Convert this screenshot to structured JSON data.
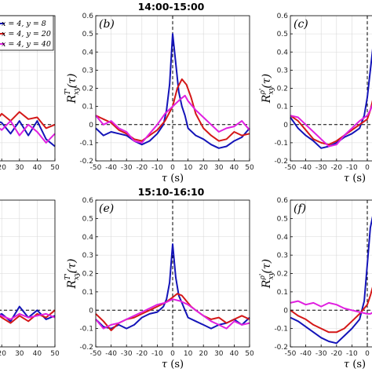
{
  "titles": {
    "top": "14:00-15:00",
    "bottom": "15:10-16:10"
  },
  "legend": [
    "x = 4, y = 8",
    "x = 4, y = 20",
    "x = 4, y = 40"
  ],
  "colors": {
    "y8": "#1414b8",
    "y20": "#d41818",
    "y40": "#e020e0",
    "zero": "#000000",
    "grid": "#d8d8d8"
  },
  "chart_data": [
    {
      "type": "line",
      "label": "",
      "title": "",
      "xlim": [
        -50,
        50
      ],
      "ylim": [
        -0.2,
        0.6
      ],
      "xticks": [
        -50,
        -40,
        -30,
        -20,
        -10,
        0,
        10,
        20,
        30,
        40,
        50
      ],
      "xtick_labels_visible": [
        "20",
        "30",
        "40",
        "50"
      ],
      "series": [
        {
          "name": "x = 4, y = 8",
          "color": "#1414b8",
          "x": [
            -50,
            -45,
            -40,
            -35,
            -30,
            -25,
            -20,
            -15,
            -10,
            -5,
            0,
            5,
            10,
            15,
            20,
            25,
            30,
            35,
            40,
            45,
            50
          ],
          "y": [
            0.03,
            0.0,
            0.05,
            0.02,
            -0.02,
            0.04,
            0.0,
            0.02,
            -0.03,
            0.03,
            0.05,
            0.02,
            -0.02,
            0.03,
            0.01,
            -0.05,
            0.02,
            -0.06,
            0.02,
            -0.08,
            -0.12
          ]
        },
        {
          "name": "x = 4, y = 20",
          "color": "#d41818",
          "x": [
            -50,
            -45,
            -40,
            -35,
            -30,
            -25,
            -20,
            -15,
            -10,
            -5,
            0,
            5,
            10,
            15,
            20,
            25,
            30,
            35,
            40,
            45,
            50
          ],
          "y": [
            0.02,
            0.05,
            0.0,
            0.04,
            0.01,
            -0.02,
            0.03,
            0.0,
            0.05,
            0.01,
            0.02,
            -0.01,
            0.04,
            0.0,
            0.06,
            0.02,
            0.07,
            0.03,
            0.04,
            -0.02,
            0.0
          ]
        },
        {
          "name": "x = 4, y = 40",
          "color": "#e020e0",
          "x": [
            -50,
            -45,
            -40,
            -35,
            -30,
            -25,
            -20,
            -15,
            -10,
            -5,
            0,
            5,
            10,
            15,
            20,
            25,
            30,
            35,
            40,
            45,
            50
          ],
          "y": [
            -0.02,
            0.02,
            -0.01,
            0.03,
            0.0,
            0.02,
            -0.03,
            0.01,
            0.03,
            -0.02,
            0.0,
            0.04,
            -0.02,
            0.01,
            -0.03,
            0.02,
            -0.06,
            0.0,
            -0.04,
            -0.1,
            -0.05
          ]
        }
      ]
    },
    {
      "type": "line",
      "label": "(b)",
      "title": "14:00-15:00",
      "ylabel": "R_xy^T'(τ)",
      "xlabel": "τ (s)",
      "xlim": [
        -50,
        50
      ],
      "ylim": [
        -0.2,
        0.6
      ],
      "xticks": [
        -50,
        -40,
        -30,
        -20,
        -10,
        0,
        10,
        20,
        30,
        40,
        50
      ],
      "yticks": [
        -0.2,
        -0.1,
        0,
        0.1,
        0.2,
        0.3,
        0.4,
        0.5,
        0.6
      ],
      "series": [
        {
          "name": "x = 4, y = 8",
          "color": "#1414b8",
          "x": [
            -50,
            -45,
            -40,
            -35,
            -30,
            -25,
            -20,
            -15,
            -10,
            -6,
            -4,
            -2,
            0,
            2,
            4,
            6,
            8,
            10,
            15,
            20,
            25,
            30,
            35,
            40,
            45,
            50
          ],
          "y": [
            -0.02,
            -0.06,
            -0.04,
            -0.05,
            -0.06,
            -0.09,
            -0.11,
            -0.09,
            -0.05,
            0.0,
            0.08,
            0.22,
            0.5,
            0.34,
            0.18,
            0.1,
            0.05,
            -0.02,
            -0.06,
            -0.08,
            -0.11,
            -0.13,
            -0.12,
            -0.09,
            -0.07,
            -0.02
          ]
        },
        {
          "name": "x = 4, y = 20",
          "color": "#d41818",
          "x": [
            -50,
            -45,
            -40,
            -35,
            -30,
            -25,
            -20,
            -15,
            -10,
            -5,
            0,
            3,
            6,
            9,
            12,
            15,
            20,
            25,
            30,
            35,
            40,
            45,
            50
          ],
          "y": [
            0.05,
            0.03,
            0.01,
            -0.03,
            -0.05,
            -0.08,
            -0.09,
            -0.06,
            -0.03,
            0.02,
            0.1,
            0.2,
            0.25,
            0.22,
            0.15,
            0.06,
            -0.02,
            -0.06,
            -0.09,
            -0.08,
            -0.04,
            -0.06,
            -0.05
          ]
        },
        {
          "name": "x = 4, y = 40",
          "color": "#e020e0",
          "x": [
            -50,
            -45,
            -40,
            -35,
            -30,
            -25,
            -20,
            -15,
            -10,
            -5,
            0,
            5,
            8,
            10,
            15,
            20,
            25,
            30,
            35,
            40,
            45,
            50
          ],
          "y": [
            0.05,
            0.0,
            0.02,
            -0.02,
            -0.04,
            -0.09,
            -0.1,
            -0.05,
            0.0,
            0.06,
            0.1,
            0.14,
            0.16,
            0.13,
            0.08,
            0.04,
            0.0,
            -0.04,
            -0.02,
            -0.01,
            0.02,
            -0.03
          ]
        }
      ]
    },
    {
      "type": "line",
      "label": "(c)",
      "title": "",
      "ylabel": "R_xy^ρ'(τ)",
      "xlabel": "τ (s)",
      "xlim": [
        -50,
        50
      ],
      "ylim": [
        -0.2,
        0.6
      ],
      "xticks": [
        -50,
        -40,
        -30,
        -20,
        -10,
        0
      ],
      "series": [
        {
          "name": "x = 4, y = 8",
          "color": "#1414b8",
          "x": [
            -50,
            -45,
            -40,
            -35,
            -30,
            -25,
            -20,
            -15,
            -10,
            -5,
            -2,
            0,
            2,
            4,
            6
          ],
          "y": [
            0.04,
            -0.02,
            -0.06,
            -0.09,
            -0.13,
            -0.12,
            -0.1,
            -0.07,
            -0.05,
            -0.02,
            0.05,
            0.15,
            0.3,
            0.45,
            0.55
          ]
        },
        {
          "name": "x = 4, y = 20",
          "color": "#d41818",
          "x": [
            -50,
            -45,
            -40,
            -35,
            -30,
            -25,
            -20,
            -15,
            -10,
            -5,
            0,
            2,
            4,
            6
          ],
          "y": [
            0.05,
            0.02,
            -0.03,
            -0.08,
            -0.1,
            -0.11,
            -0.09,
            -0.06,
            -0.03,
            0.0,
            0.03,
            0.08,
            0.15,
            0.22
          ]
        },
        {
          "name": "x = 4, y = 40",
          "color": "#e020e0",
          "x": [
            -50,
            -45,
            -40,
            -35,
            -30,
            -25,
            -20,
            -15,
            -10,
            -5,
            0,
            2,
            4,
            6
          ],
          "y": [
            0.05,
            0.04,
            0.0,
            -0.04,
            -0.08,
            -0.12,
            -0.11,
            -0.06,
            -0.02,
            0.02,
            0.05,
            0.08,
            0.12,
            0.14
          ]
        }
      ]
    },
    {
      "type": "line",
      "label": "",
      "title": "",
      "xlim": [
        -50,
        50
      ],
      "ylim": [
        -0.2,
        0.6
      ],
      "xtick_labels_visible": [
        "20",
        "30",
        "40",
        "50"
      ],
      "series": [
        {
          "name": "x = 4, y = 8",
          "color": "#1414b8",
          "x": [
            -50,
            -45,
            -40,
            -35,
            -30,
            -25,
            -20,
            -15,
            -10,
            -5,
            0,
            5,
            10,
            15,
            20,
            25,
            30,
            35,
            40,
            45,
            50
          ],
          "y": [
            -0.05,
            0.0,
            -0.08,
            -0.02,
            -0.06,
            0.01,
            -0.04,
            -0.08,
            -0.02,
            0.0,
            -0.05,
            -0.02,
            0.01,
            -0.04,
            -0.02,
            -0.06,
            0.02,
            -0.04,
            0.0,
            -0.05,
            -0.03
          ]
        },
        {
          "name": "x = 4, y = 20",
          "color": "#d41818",
          "x": [
            -50,
            -45,
            -40,
            -35,
            -30,
            -25,
            -20,
            -15,
            -10,
            -5,
            0,
            5,
            10,
            15,
            20,
            25,
            30,
            35,
            40,
            45,
            50
          ],
          "y": [
            -0.02,
            -0.06,
            -0.01,
            -0.05,
            -0.03,
            -0.07,
            -0.02,
            -0.04,
            -0.06,
            -0.01,
            0.03,
            -0.02,
            -0.05,
            0.0,
            -0.04,
            -0.07,
            -0.03,
            -0.06,
            -0.02,
            -0.04,
            0.0
          ]
        },
        {
          "name": "x = 4, y = 40",
          "color": "#e020e0",
          "x": [
            -50,
            -45,
            -40,
            -35,
            -30,
            -25,
            -20,
            -15,
            -10,
            -5,
            0,
            5,
            10,
            15,
            20,
            25,
            30,
            35,
            40,
            45,
            50
          ],
          "y": [
            -0.03,
            0.0,
            -0.04,
            -0.02,
            -0.05,
            -0.03,
            0.0,
            -0.06,
            -0.03,
            -0.05,
            -0.02,
            -0.04,
            -0.06,
            -0.01,
            -0.03,
            -0.05,
            -0.02,
            -0.04,
            -0.03,
            -0.02,
            -0.04
          ]
        }
      ]
    },
    {
      "type": "line",
      "label": "(e)",
      "title": "15:10-16:10",
      "ylabel": "R_xy^T'(τ)",
      "xlabel": "τ (s)",
      "xlim": [
        -50,
        50
      ],
      "ylim": [
        -0.2,
        0.6
      ],
      "xticks": [
        -50,
        -40,
        -30,
        -20,
        -10,
        0,
        10,
        20,
        30,
        40,
        50
      ],
      "yticks": [
        -0.2,
        -0.1,
        0,
        0.1,
        0.2,
        0.3,
        0.4,
        0.5,
        0.6
      ],
      "series": [
        {
          "name": "x = 4, y = 8",
          "color": "#1414b8",
          "x": [
            -50,
            -45,
            -40,
            -35,
            -30,
            -25,
            -20,
            -15,
            -10,
            -6,
            -4,
            -2,
            0,
            2,
            4,
            6,
            8,
            10,
            15,
            20,
            25,
            30,
            35,
            40,
            45,
            50
          ],
          "y": [
            -0.05,
            -0.09,
            -0.1,
            -0.08,
            -0.1,
            -0.08,
            -0.04,
            -0.02,
            -0.01,
            0.02,
            0.06,
            0.15,
            0.36,
            0.18,
            0.08,
            0.04,
            0.0,
            -0.04,
            -0.06,
            -0.08,
            -0.1,
            -0.08,
            -0.07,
            -0.05,
            -0.08,
            -0.04
          ]
        },
        {
          "name": "x = 4, y = 20",
          "color": "#d41818",
          "x": [
            -50,
            -45,
            -40,
            -35,
            -30,
            -25,
            -20,
            -15,
            -10,
            -5,
            0,
            3,
            6,
            9,
            12,
            15,
            20,
            25,
            30,
            35,
            40,
            45,
            50
          ],
          "y": [
            -0.02,
            -0.06,
            -0.11,
            -0.07,
            -0.05,
            -0.04,
            -0.02,
            0.0,
            0.02,
            0.04,
            0.07,
            0.09,
            0.08,
            0.05,
            0.02,
            0.0,
            -0.03,
            -0.05,
            -0.04,
            -0.07,
            -0.05,
            -0.03,
            -0.05
          ]
        },
        {
          "name": "x = 4, y = 40",
          "color": "#e020e0",
          "x": [
            -50,
            -45,
            -40,
            -35,
            -30,
            -25,
            -20,
            -15,
            -10,
            -5,
            0,
            5,
            10,
            15,
            20,
            25,
            30,
            35,
            40,
            45,
            50
          ],
          "y": [
            -0.05,
            -0.1,
            -0.08,
            -0.07,
            -0.05,
            -0.03,
            -0.01,
            0.01,
            0.03,
            0.04,
            0.06,
            0.05,
            0.03,
            0.0,
            -0.03,
            -0.06,
            -0.08,
            -0.1,
            -0.06,
            -0.08,
            -0.07
          ]
        }
      ]
    },
    {
      "type": "line",
      "label": "(f)",
      "title": "",
      "ylabel": "R_xy^ρ'(τ)",
      "xlabel": "τ (s)",
      "xlim": [
        -50,
        50
      ],
      "ylim": [
        -0.2,
        0.6
      ],
      "xticks": [
        -50,
        -40,
        -30,
        -20,
        -10,
        0
      ],
      "series": [
        {
          "name": "x = 4, y = 8",
          "color": "#1414b8",
          "x": [
            -50,
            -45,
            -40,
            -35,
            -30,
            -25,
            -20,
            -15,
            -10,
            -5,
            -2,
            0,
            2,
            4,
            6
          ],
          "y": [
            -0.04,
            -0.06,
            -0.09,
            -0.12,
            -0.15,
            -0.17,
            -0.18,
            -0.14,
            -0.1,
            -0.05,
            0.05,
            0.25,
            0.45,
            0.53,
            0.5
          ]
        },
        {
          "name": "x = 4, y = 20",
          "color": "#d41818",
          "x": [
            -50,
            -45,
            -40,
            -35,
            -30,
            -25,
            -20,
            -15,
            -10,
            -5,
            0,
            2,
            4,
            6
          ],
          "y": [
            0.0,
            -0.03,
            -0.05,
            -0.08,
            -0.1,
            -0.12,
            -0.12,
            -0.1,
            -0.06,
            -0.02,
            0.03,
            0.08,
            0.14,
            0.2
          ]
        },
        {
          "name": "x = 4, y = 40",
          "color": "#e020e0",
          "x": [
            -50,
            -45,
            -40,
            -35,
            -30,
            -25,
            -20,
            -15,
            -10,
            -5,
            0,
            2,
            4,
            6
          ],
          "y": [
            0.04,
            0.05,
            0.03,
            0.04,
            0.02,
            0.04,
            0.03,
            0.01,
            0.0,
            -0.01,
            -0.02,
            -0.02,
            -0.01,
            0.0
          ]
        }
      ]
    }
  ]
}
